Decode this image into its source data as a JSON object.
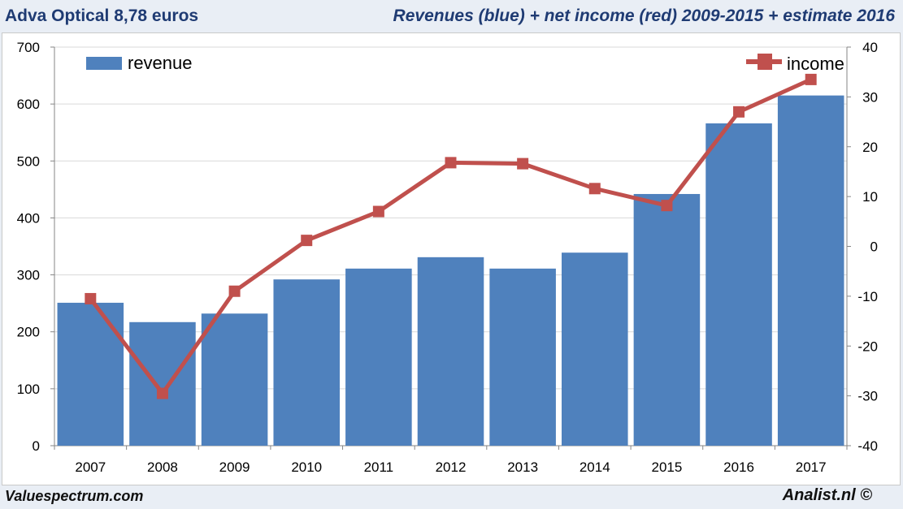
{
  "header": {
    "title_left": "Adva Optical 8,78 euros",
    "title_right": "Revenues (blue) + net income (red) 2009-2015 + estimate 2016"
  },
  "footer": {
    "left": "Valuespectrum.com",
    "right": "Analist.nl ©"
  },
  "colors": {
    "revenue": "#4f81bd",
    "income": "#c0504d",
    "title": "#1f3b73",
    "grid": "#d9d9d9"
  },
  "chart_data": {
    "type": "bar",
    "categories": [
      "2007",
      "2008",
      "2009",
      "2010",
      "2011",
      "2012",
      "2013",
      "2014",
      "2015",
      "2016",
      "2017"
    ],
    "series": [
      {
        "name": "revenue",
        "type": "bar",
        "axis": "left",
        "values": [
          251,
          217,
          232,
          292,
          311,
          331,
          311,
          339,
          442,
          566,
          615
        ]
      },
      {
        "name": "income",
        "type": "line",
        "axis": "right",
        "values": [
          -10.5,
          -29.5,
          -9,
          1.2,
          7,
          16.8,
          16.6,
          11.6,
          8.2,
          27,
          33.5
        ]
      }
    ],
    "y_left": {
      "min": 0,
      "max": 700,
      "step": 100,
      "ticks": [
        "0",
        "100",
        "200",
        "300",
        "400",
        "500",
        "600",
        "700"
      ]
    },
    "y_right": {
      "min": -40,
      "max": 40,
      "step": 10,
      "ticks": [
        "-40",
        "-30",
        "-20",
        "-10",
        "0",
        "10",
        "20",
        "30",
        "40"
      ]
    },
    "grid": true,
    "legend": {
      "revenue_position": "top-left",
      "income_position": "top-right"
    }
  }
}
